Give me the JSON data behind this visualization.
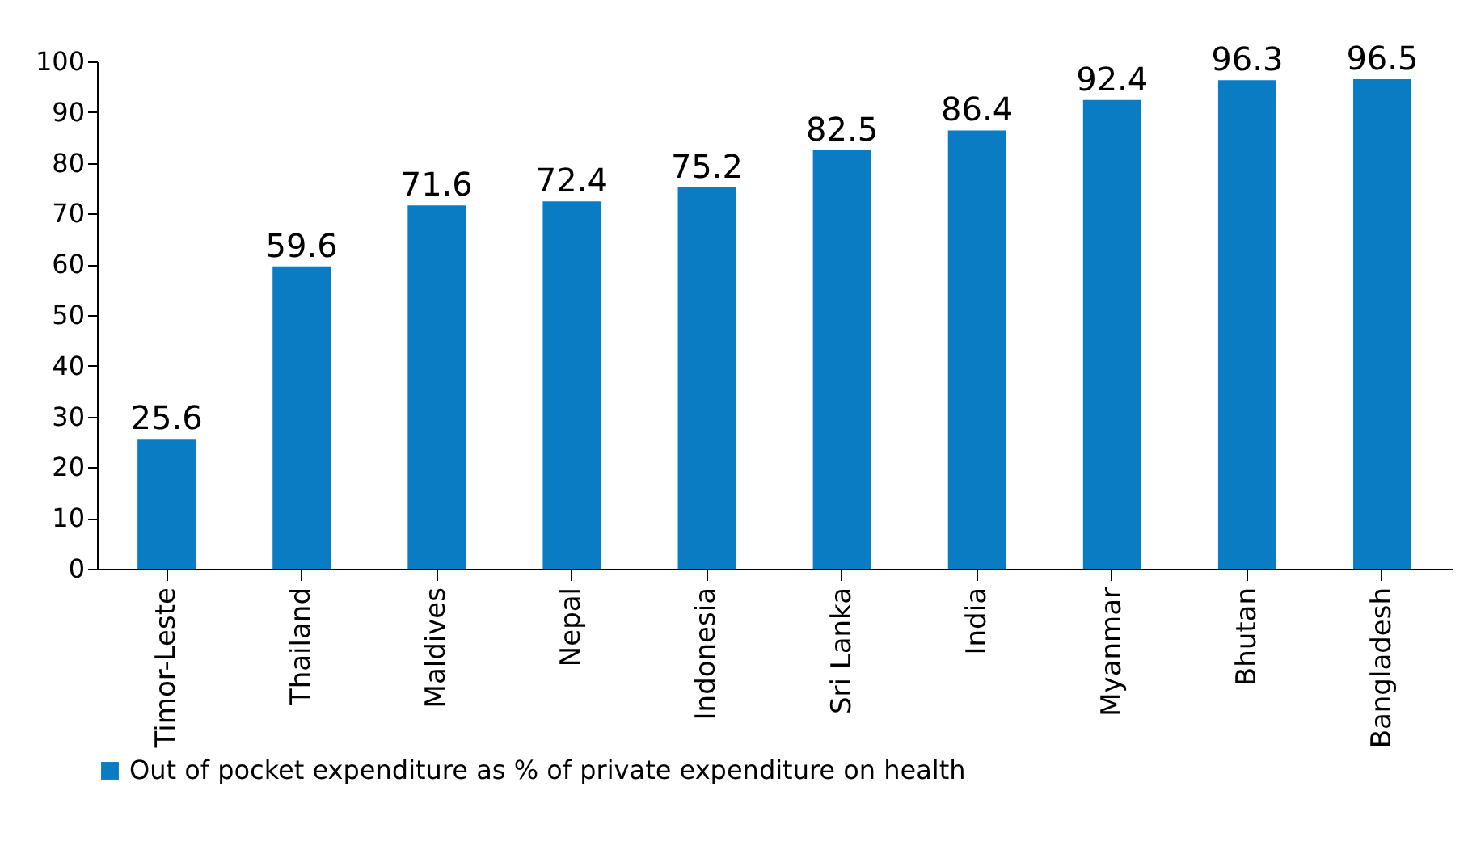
{
  "chart_data": {
    "type": "bar",
    "categories": [
      "Timor-Leste",
      "Thailand",
      "Maldives",
      "Nepal",
      "Indonesia",
      "Sri Lanka",
      "India",
      "Myanmar",
      "Bhutan",
      "Bangladesh"
    ],
    "series": [
      {
        "name": "Out of pocket expenditure as % of private expenditure on health",
        "color": "#0a7cc4",
        "values": [
          25.6,
          59.6,
          71.6,
          72.4,
          75.2,
          82.5,
          86.4,
          92.4,
          96.3,
          96.5
        ]
      }
    ],
    "ylim": [
      0,
      100
    ],
    "yticks": [
      0,
      10,
      20,
      30,
      40,
      50,
      60,
      70,
      80,
      90,
      100
    ],
    "data_labels": true,
    "legend": "bottom",
    "grid": false
  }
}
